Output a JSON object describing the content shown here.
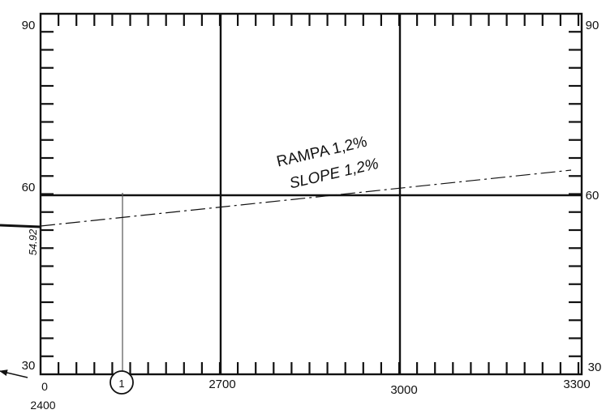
{
  "y_axis_labels": {
    "left": {
      "top": "90",
      "middle": "60",
      "bottom": "30"
    },
    "right": {
      "top": "90",
      "middle": "60",
      "bottom": "30"
    }
  },
  "x_axis_labels": {
    "start": "0",
    "left_offset": "2400",
    "grid_1": "2700",
    "grid_2": "3000",
    "end": "3300"
  },
  "annotations": {
    "ramp_label": "RAMPA 1,2%",
    "slope_label": "SLOPE 1,2%",
    "elevation_label": "54.92",
    "marker_label": "1"
  }
}
